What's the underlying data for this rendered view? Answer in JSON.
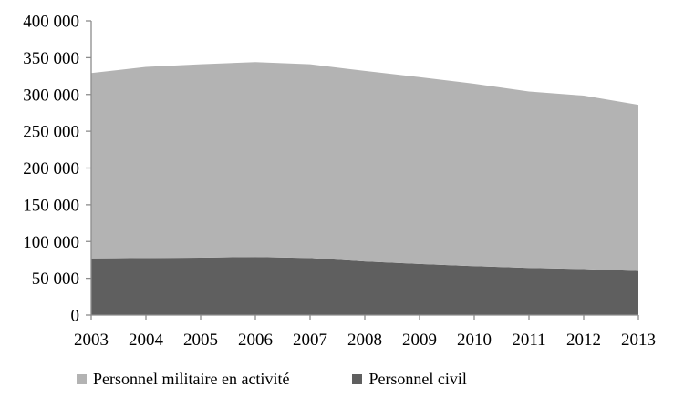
{
  "chart_data": {
    "type": "area",
    "stacked": true,
    "title": "",
    "xlabel": "",
    "ylabel": "",
    "grid": false,
    "legend_position": "bottom",
    "axis_color": "#8c8c8c",
    "text_color": "#000000",
    "background_color": "#ffffff",
    "ylim": [
      0,
      400000
    ],
    "categories": [
      "2003",
      "2004",
      "2005",
      "2006",
      "2007",
      "2008",
      "2009",
      "2010",
      "2011",
      "2012",
      "2013"
    ],
    "series": [
      {
        "name": "Personnel militaire en activité",
        "color": "#b3b3b3",
        "values": [
          252000,
          260000,
          263000,
          265000,
          263500,
          259000,
          254000,
          248000,
          240000,
          236000,
          226000
        ]
      },
      {
        "name": "Personnel civil",
        "color": "#5f5f5f",
        "values": [
          77000,
          77500,
          78000,
          79000,
          77500,
          73000,
          69500,
          66500,
          64000,
          62500,
          60000
        ]
      }
    ],
    "stack_bottom_to_top": [
      "Personnel civil",
      "Personnel militaire en activité"
    ],
    "totals": [
      329000,
      337500,
      341000,
      344000,
      341000,
      332000,
      323500,
      314500,
      304000,
      298500,
      286000
    ],
    "y_ticks": [
      {
        "value": 0,
        "label": "0"
      },
      {
        "value": 50000,
        "label": "50 000"
      },
      {
        "value": 100000,
        "label": "100 000"
      },
      {
        "value": 150000,
        "label": "150 000"
      },
      {
        "value": 200000,
        "label": "200 000"
      },
      {
        "value": 250000,
        "label": "250 000"
      },
      {
        "value": 300000,
        "label": "300 000"
      },
      {
        "value": 350000,
        "label": "350 000"
      },
      {
        "value": 400000,
        "label": "400 000"
      }
    ]
  },
  "legend": {
    "items": [
      {
        "label": "Personnel militaire en activité",
        "color": "#b3b3b3"
      },
      {
        "label": "Personnel civil",
        "color": "#5f5f5f"
      }
    ]
  }
}
